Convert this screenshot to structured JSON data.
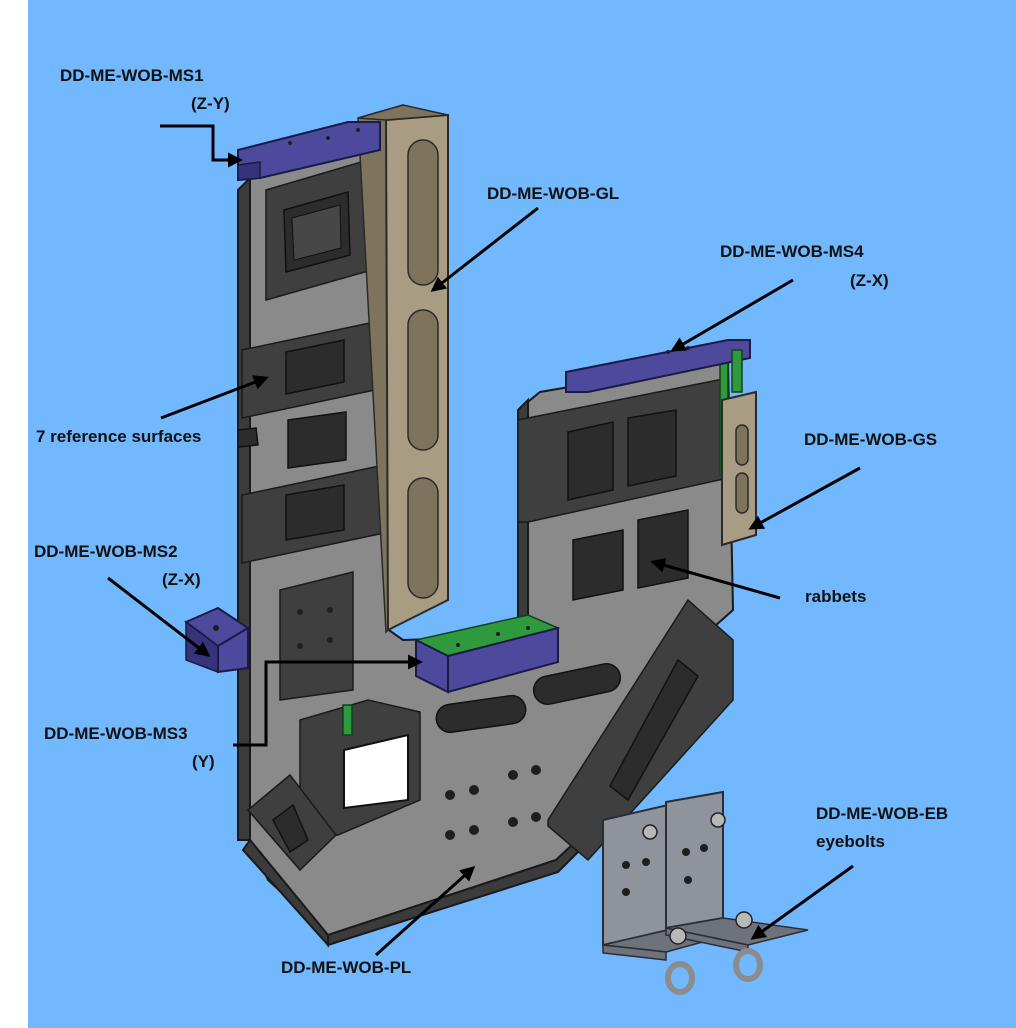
{
  "background_color": "#72b8ff",
  "part_colors": {
    "plate": "#8a8a8a",
    "guide_long": "#a89c82",
    "mounting_strip": "#4d4a9e",
    "reference_surface": "#2e9a3d",
    "eyebolt_bracket": "#8e939c"
  },
  "labels": {
    "ms1": "DD-ME-WOB-MS1",
    "ms1_axis": "(Z-Y)",
    "gl": "DD-ME-WOB-GL",
    "ms4": "DD-ME-WOB-MS4",
    "ms4_axis": "(Z-X)",
    "ref_surfaces": "7 reference surfaces",
    "gs": "DD-ME-WOB-GS",
    "ms2": "DD-ME-WOB-MS2",
    "ms2_axis": "(Z-X)",
    "rabbets": "rabbets",
    "ms3": "DD-ME-WOB-MS3",
    "ms3_axis": "(Y)",
    "eb": "DD-ME-WOB-EB",
    "eb_sub": "eyebolts",
    "pl": "DD-ME-WOB-PL"
  }
}
